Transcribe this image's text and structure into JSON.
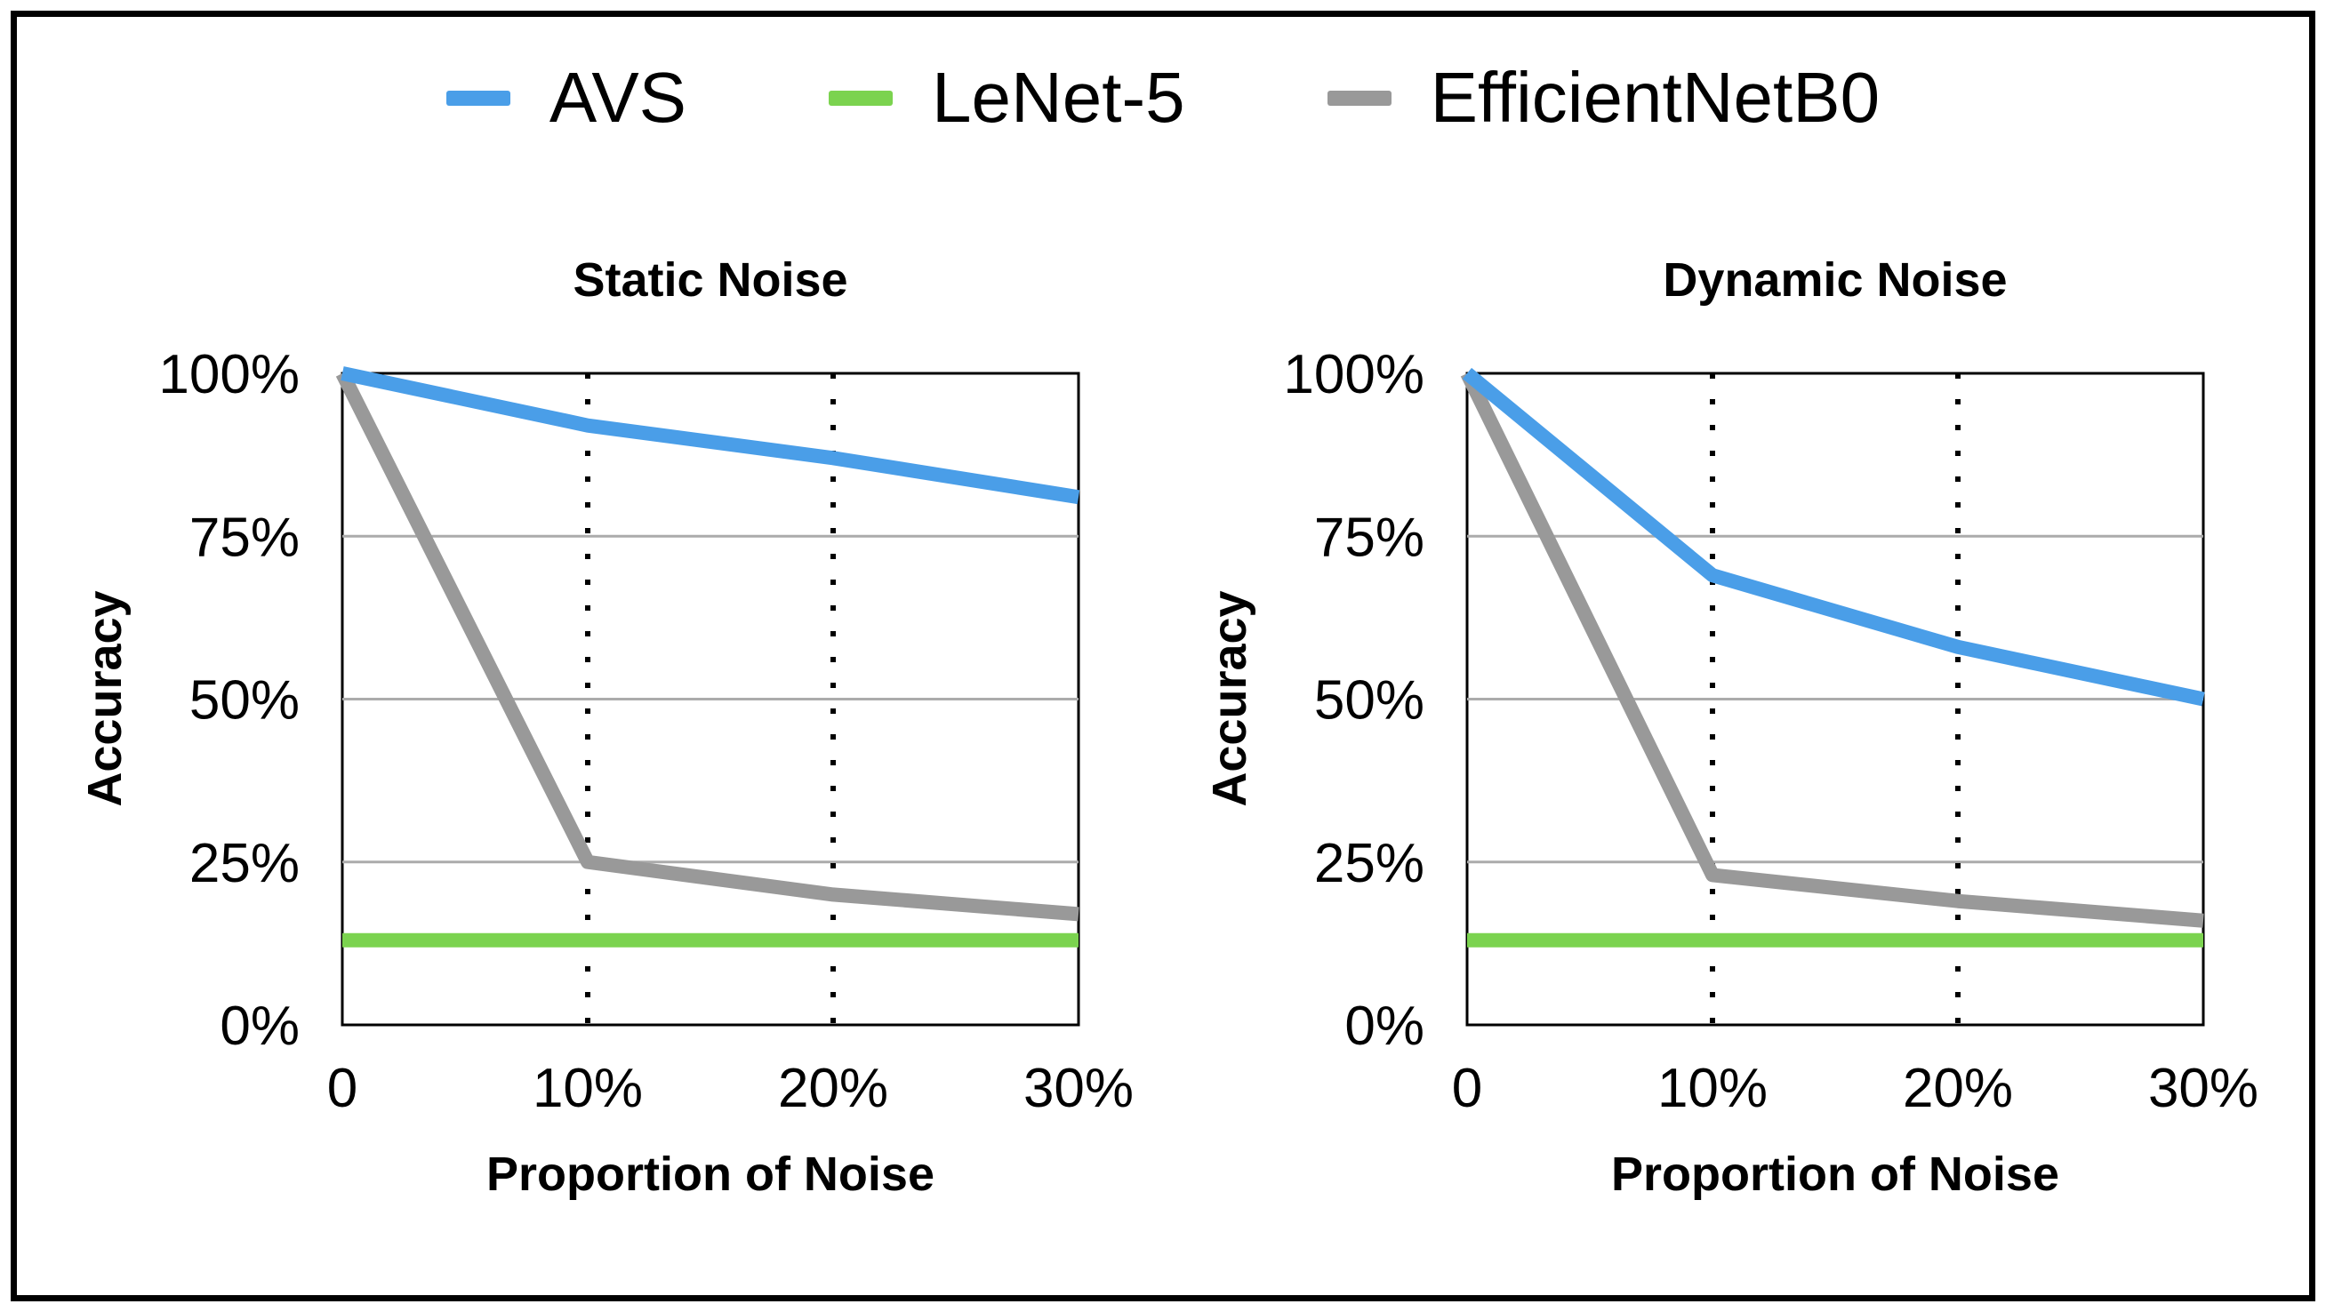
{
  "legend": {
    "items": [
      {
        "label": "AVS",
        "color": "#4A9EE8"
      },
      {
        "label": "LeNet-5",
        "color": "#7BD34F"
      },
      {
        "label": "EfficientNetB0",
        "color": "#999999"
      }
    ]
  },
  "chart_data": [
    {
      "type": "line",
      "title": "Static Noise",
      "xlabel": "Proportion of Noise",
      "ylabel": "Accuracy",
      "x": [
        0,
        10,
        20,
        30
      ],
      "x_tick_labels": [
        "0",
        "10%",
        "20%",
        "30%"
      ],
      "y_tick_labels": [
        "0%",
        "25%",
        "50%",
        "75%",
        "100%"
      ],
      "ylim": [
        0,
        100
      ],
      "grid_y": [
        25,
        50,
        75
      ],
      "dotted_vlines_x": [
        10,
        20
      ],
      "legend_position": "top-center",
      "series": [
        {
          "name": "AVS",
          "color": "#4A9EE8",
          "values": [
            100,
            92,
            87,
            81
          ]
        },
        {
          "name": "LeNet-5",
          "color": "#7BD34F",
          "values": [
            13,
            13,
            13,
            13
          ]
        },
        {
          "name": "EfficientNetB0",
          "color": "#999999",
          "values": [
            100,
            25,
            20,
            17
          ]
        }
      ]
    },
    {
      "type": "line",
      "title": "Dynamic Noise",
      "xlabel": "Proportion of Noise",
      "ylabel": "Accuracy",
      "x": [
        0,
        10,
        20,
        30
      ],
      "x_tick_labels": [
        "0",
        "10%",
        "20%",
        "30%"
      ],
      "y_tick_labels": [
        "0%",
        "25%",
        "50%",
        "75%",
        "100%"
      ],
      "ylim": [
        0,
        100
      ],
      "grid_y": [
        25,
        50,
        75
      ],
      "dotted_vlines_x": [
        10,
        20
      ],
      "legend_position": "top-center",
      "series": [
        {
          "name": "AVS",
          "color": "#4A9EE8",
          "values": [
            100,
            69,
            58,
            50
          ]
        },
        {
          "name": "LeNet-5",
          "color": "#7BD34F",
          "values": [
            13,
            13,
            13,
            13
          ]
        },
        {
          "name": "EfficientNetB0",
          "color": "#999999",
          "values": [
            100,
            23,
            19,
            16
          ]
        }
      ]
    }
  ],
  "style": {
    "grid_color": "#ABABAB",
    "frame_color": "#000000",
    "dotted_line_color": "#000000"
  }
}
